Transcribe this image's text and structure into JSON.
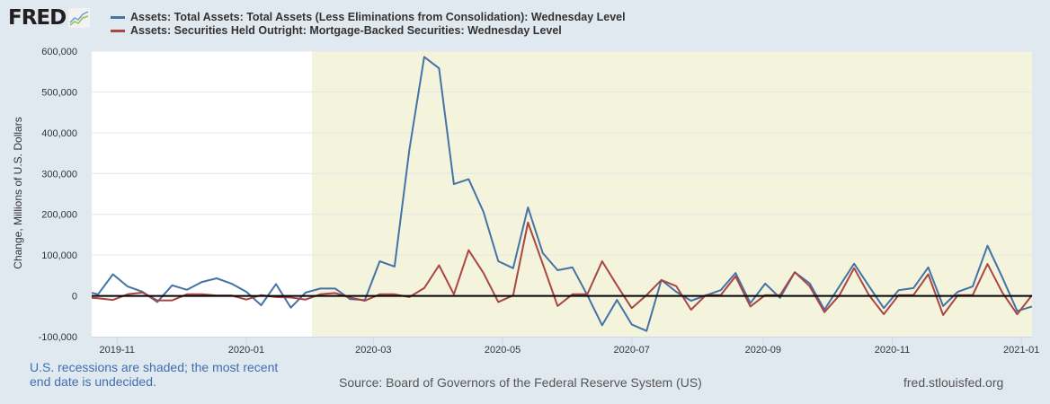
{
  "logo": {
    "text": "FRED",
    "icon": "line-chart-icon"
  },
  "chart_data": {
    "type": "line",
    "title": "",
    "xlabel": "",
    "ylabel": "Change, Millions of U.S. Dollars",
    "xlim": [
      "2019-10-20",
      "2021-01-06"
    ],
    "ylim": [
      -100000,
      600000
    ],
    "grid": true,
    "legend_position": "top",
    "y_ticks": [
      "-100,000",
      "0",
      "100,000",
      "200,000",
      "300,000",
      "400,000",
      "500,000",
      "600,000"
    ],
    "y_tick_values": [
      -100000,
      0,
      100000,
      200000,
      300000,
      400000,
      500000,
      600000
    ],
    "x_ticks": [
      "2019-11",
      "2020-01",
      "2020-03",
      "2020-05",
      "2020-07",
      "2020-09",
      "2020-11",
      "2021-01"
    ],
    "x_tick_dates": [
      "2019-11-01",
      "2020-01-01",
      "2020-03-01",
      "2020-05-01",
      "2020-07-01",
      "2020-09-01",
      "2020-11-01",
      "2021-01-01"
    ],
    "recession_shading": {
      "start": "2020-02-01",
      "end": "2021-01-06",
      "color": "#f4f4dc"
    },
    "zero_line": true,
    "x": [
      "2019-10-16",
      "2019-10-23",
      "2019-10-30",
      "2019-11-06",
      "2019-11-13",
      "2019-11-20",
      "2019-11-27",
      "2019-12-04",
      "2019-12-11",
      "2019-12-18",
      "2019-12-25",
      "2020-01-01",
      "2020-01-08",
      "2020-01-15",
      "2020-01-22",
      "2020-01-29",
      "2020-02-05",
      "2020-02-12",
      "2020-02-19",
      "2020-02-26",
      "2020-03-04",
      "2020-03-11",
      "2020-03-18",
      "2020-03-25",
      "2020-04-01",
      "2020-04-08",
      "2020-04-15",
      "2020-04-22",
      "2020-04-29",
      "2020-05-06",
      "2020-05-13",
      "2020-05-20",
      "2020-05-27",
      "2020-06-03",
      "2020-06-10",
      "2020-06-17",
      "2020-06-24",
      "2020-07-01",
      "2020-07-08",
      "2020-07-15",
      "2020-07-22",
      "2020-07-29",
      "2020-08-05",
      "2020-08-12",
      "2020-08-19",
      "2020-08-26",
      "2020-09-02",
      "2020-09-09",
      "2020-09-16",
      "2020-09-23",
      "2020-09-30",
      "2020-10-07",
      "2020-10-14",
      "2020-10-21",
      "2020-10-28",
      "2020-11-04",
      "2020-11-11",
      "2020-11-18",
      "2020-11-25",
      "2020-12-02",
      "2020-12-09",
      "2020-12-16",
      "2020-12-23",
      "2020-12-30",
      "2021-01-06"
    ],
    "series": [
      {
        "name": "Assets: Total Assets: Total Assets (Less Eliminations from Consolidation): Wednesday Level",
        "color": "#4572a7",
        "values": [
          12000,
          4000,
          53000,
          23000,
          10000,
          -15000,
          26000,
          15000,
          34000,
          43000,
          30000,
          10000,
          -23000,
          29000,
          -29000,
          8000,
          18000,
          18000,
          -8000,
          -10000,
          85000,
          72000,
          359000,
          586000,
          558000,
          274000,
          286000,
          206000,
          85000,
          68000,
          217000,
          105000,
          63000,
          70000,
          2000,
          -72000,
          -10000,
          -70000,
          -86000,
          39000,
          10000,
          -12000,
          1000,
          14000,
          56000,
          -18000,
          30000,
          -5000,
          58000,
          31000,
          -34000,
          23000,
          79000,
          24000,
          -30000,
          14000,
          19000,
          70000,
          -25000,
          10000,
          23000,
          123000,
          45000,
          -37000,
          -26000
        ]
      },
      {
        "name": "Assets: Securities Held Outright: Mortgage-Backed Securities: Wednesday Level",
        "color": "#aa4643",
        "values": [
          -3000,
          -6000,
          -10000,
          4000,
          8000,
          -11000,
          -11000,
          4000,
          4000,
          1000,
          1000,
          -9000,
          2000,
          -3000,
          -4000,
          -9000,
          4000,
          7000,
          -4000,
          -12000,
          4000,
          4000,
          -3000,
          19000,
          75000,
          4000,
          112000,
          56000,
          -15000,
          1000,
          180000,
          78000,
          -25000,
          4000,
          4000,
          85000,
          26000,
          -30000,
          2000,
          39000,
          24000,
          -34000,
          2000,
          2000,
          48000,
          -26000,
          2000,
          2000,
          58000,
          24000,
          -40000,
          1000,
          68000,
          2000,
          -45000,
          2000,
          2000,
          53000,
          -47000,
          2000,
          2000,
          78000,
          8000,
          -45000,
          2000
        ]
      }
    ]
  },
  "footer": {
    "note": "U.S. recessions are shaded; the most recent end date is undecided.",
    "source": "Source: Board of Governors of the Federal Reserve System (US)",
    "site": "fred.stlouisfed.org"
  }
}
